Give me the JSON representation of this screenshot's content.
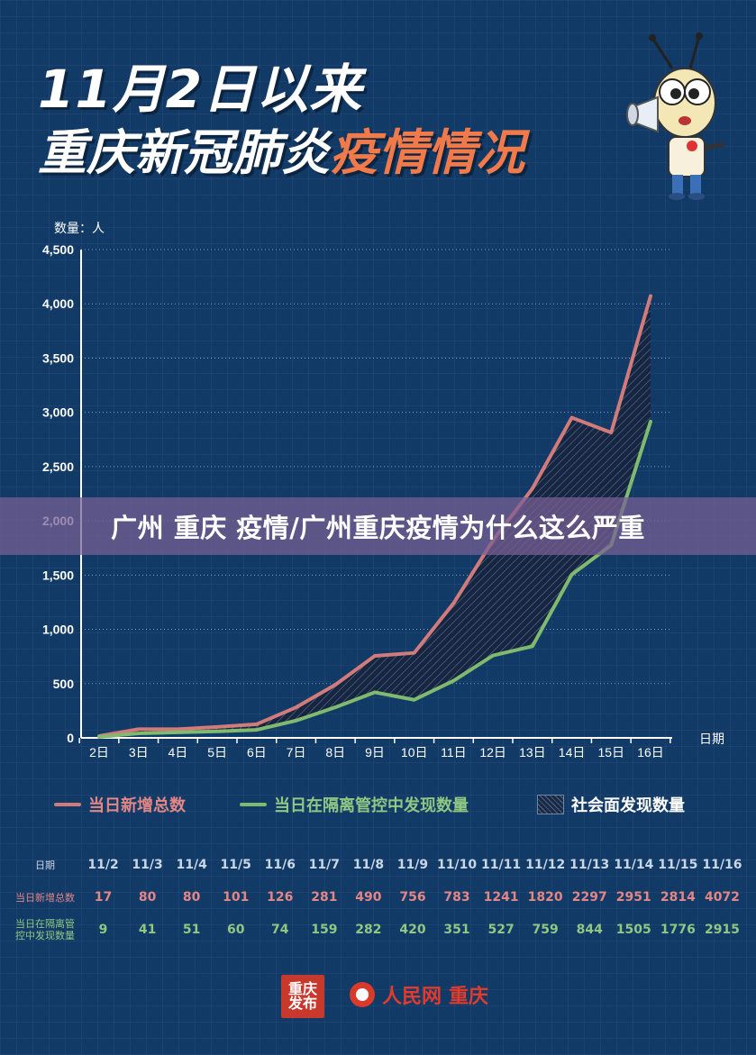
{
  "header": {
    "title_line1": "11月2日以来",
    "title_line2_white": "重庆新冠肺炎",
    "title_line2_orange": "疫情情况"
  },
  "banner": "广州 重庆 疫情/广州重庆疫情为什么这么严重",
  "chart_data": {
    "type": "line",
    "ylabel": "数量：人",
    "xlabel": "日期",
    "ylim": [
      0,
      4500
    ],
    "yticks": [
      "0",
      "500",
      "1,000",
      "1,500",
      "2,000",
      "2,500",
      "3,000",
      "3,500",
      "4,000",
      "4,500"
    ],
    "categories": [
      "2日",
      "3日",
      "4日",
      "5日",
      "6日",
      "7日",
      "8日",
      "9日",
      "10日",
      "11日",
      "12日",
      "13日",
      "14日",
      "15日",
      "16日"
    ],
    "grid": true,
    "series": [
      {
        "name": "当日新增总数",
        "color": "#d27b7b",
        "values": [
          17,
          80,
          80,
          101,
          126,
          281,
          490,
          756,
          783,
          1241,
          1820,
          2297,
          2951,
          2814,
          4072
        ]
      },
      {
        "name": "当日在隔离管控中发现数量",
        "color": "#7fba6e",
        "values": [
          9,
          41,
          51,
          60,
          74,
          159,
          282,
          420,
          351,
          527,
          759,
          844,
          1505,
          1776,
          2915
        ]
      }
    ],
    "area_between_label": "社会面发现数量"
  },
  "table": {
    "header_label": "日期",
    "dates": [
      "11/2",
      "11/3",
      "11/4",
      "11/5",
      "11/6",
      "11/7",
      "11/8",
      "11/9",
      "11/10",
      "11/11",
      "11/12",
      "11/13",
      "11/14",
      "11/15",
      "11/16"
    ],
    "row1_label": "当日新增总数",
    "row1": [
      "17",
      "80",
      "80",
      "101",
      "126",
      "281",
      "490",
      "756",
      "783",
      "1241",
      "1820",
      "2297",
      "2951",
      "2814",
      "4072"
    ],
    "row2_label_a": "当日在隔离管",
    "row2_label_b": "控中发现数量",
    "row2": [
      "9",
      "41",
      "51",
      "60",
      "74",
      "159",
      "282",
      "420",
      "351",
      "527",
      "759",
      "844",
      "1505",
      "1776",
      "2915"
    ]
  },
  "footer": {
    "logo1_line1": "重庆",
    "logo1_line2": "发布",
    "logo2_name": "人民网",
    "logo2_city": "重庆"
  },
  "icons": {
    "mascot": "megaphone-mascot-icon"
  }
}
